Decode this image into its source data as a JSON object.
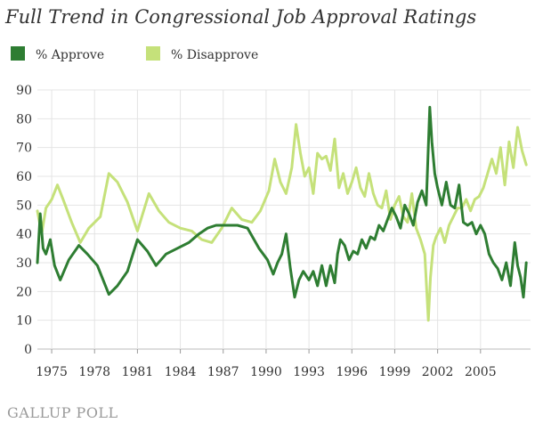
{
  "chart_data": {
    "type": "line",
    "title": "Full Trend in Congressional Job Approval Ratings",
    "xlabel": "",
    "ylabel": "",
    "xlim": [
      1974,
      2008.5
    ],
    "ylim": [
      0,
      90
    ],
    "yticks": [
      0,
      10,
      20,
      30,
      40,
      50,
      60,
      70,
      80,
      90
    ],
    "xticks": [
      "1975",
      "1978",
      "1981",
      "1984",
      "1987",
      "1990",
      "1993",
      "1996",
      "1999",
      "2002",
      "2005"
    ],
    "grid": true,
    "legend_position": "top-left",
    "series": [
      {
        "name": "% Approve",
        "color": "#2e7d32",
        "x": [
          1974.0,
          1974.2,
          1974.4,
          1974.6,
          1974.9,
          1975.2,
          1975.6,
          1976.2,
          1976.9,
          1977.5,
          1978.2,
          1979.0,
          1979.6,
          1980.3,
          1981.0,
          1981.7,
          1982.3,
          1983.0,
          1983.8,
          1984.6,
          1985.3,
          1985.9,
          1986.5,
          1987.2,
          1988.0,
          1988.7,
          1989.5,
          1990.1,
          1990.5,
          1990.8,
          1991.1,
          1991.4,
          1991.7,
          1992.0,
          1992.3,
          1992.6,
          1993.0,
          1993.3,
          1993.6,
          1993.9,
          1994.2,
          1994.5,
          1994.8,
          1995.0,
          1995.2,
          1995.5,
          1995.8,
          1996.1,
          1996.4,
          1996.7,
          1997.0,
          1997.3,
          1997.6,
          1997.9,
          1998.2,
          1998.5,
          1998.8,
          1999.1,
          1999.4,
          1999.7,
          2000.0,
          2000.3,
          2000.6,
          2000.9,
          2001.2,
          2001.45,
          2001.6,
          2001.8,
          2002.0,
          2002.3,
          2002.6,
          2002.9,
          2003.2,
          2003.5,
          2003.8,
          2004.1,
          2004.4,
          2004.7,
          2005.0,
          2005.3,
          2005.6,
          2005.9,
          2006.2,
          2006.5,
          2006.8,
          2007.1,
          2007.4,
          2007.6,
          2007.8,
          2008.0,
          2008.2
        ],
        "values": [
          30,
          47,
          35,
          33,
          38,
          29,
          24,
          31,
          36,
          33,
          29,
          19,
          22,
          27,
          38,
          34,
          29,
          33,
          35,
          37,
          40,
          42,
          43,
          43,
          43,
          42,
          35,
          31,
          26,
          30,
          33,
          40,
          28,
          18,
          24,
          27,
          24,
          27,
          22,
          29,
          22,
          29,
          23,
          33,
          38,
          36,
          31,
          34,
          33,
          38,
          35,
          39,
          38,
          43,
          41,
          45,
          49,
          46,
          42,
          50,
          47,
          43,
          51,
          55,
          50,
          84,
          72,
          61,
          56,
          50,
          58,
          50,
          49,
          57,
          44,
          43,
          44,
          40,
          43,
          40,
          33,
          30,
          28,
          24,
          30,
          22,
          37,
          29,
          25,
          18,
          30
        ]
      },
      {
        "name": "% Disapprove",
        "color": "#c5e17a",
        "x": [
          1974.0,
          1974.3,
          1974.6,
          1975.0,
          1975.4,
          1975.8,
          1976.4,
          1977.0,
          1977.6,
          1978.4,
          1979.0,
          1979.6,
          1980.3,
          1981.0,
          1981.8,
          1982.5,
          1983.2,
          1984.0,
          1984.8,
          1985.5,
          1986.2,
          1986.9,
          1987.6,
          1988.3,
          1989.0,
          1989.6,
          1990.2,
          1990.6,
          1991.0,
          1991.4,
          1991.8,
          1992.1,
          1992.4,
          1992.7,
          1993.0,
          1993.3,
          1993.6,
          1993.9,
          1994.2,
          1994.5,
          1994.8,
          1995.1,
          1995.4,
          1995.7,
          1996.0,
          1996.3,
          1996.6,
          1996.9,
          1997.2,
          1997.5,
          1997.8,
          1998.1,
          1998.4,
          1998.7,
          1999.0,
          1999.3,
          1999.6,
          1999.9,
          2000.2,
          2000.5,
          2000.8,
          2001.1,
          2001.35,
          2001.5,
          2001.7,
          2001.9,
          2002.2,
          2002.5,
          2002.8,
          2003.1,
          2003.4,
          2003.7,
          2004.0,
          2004.3,
          2004.6,
          2004.9,
          2005.2,
          2005.5,
          2005.8,
          2006.1,
          2006.4,
          2006.7,
          2007.0,
          2007.3,
          2007.6,
          2007.9,
          2008.2
        ],
        "values": [
          48,
          40,
          49,
          52,
          57,
          52,
          44,
          37,
          42,
          46,
          61,
          58,
          51,
          41,
          54,
          48,
          44,
          42,
          41,
          38,
          37,
          42,
          49,
          45,
          44,
          48,
          55,
          66,
          58,
          54,
          63,
          78,
          68,
          60,
          63,
          54,
          68,
          66,
          67,
          62,
          73,
          56,
          61,
          54,
          58,
          63,
          56,
          53,
          61,
          54,
          50,
          49,
          55,
          45,
          50,
          53,
          46,
          44,
          54,
          42,
          38,
          33,
          10,
          25,
          36,
          39,
          42,
          37,
          43,
          46,
          49,
          49,
          52,
          48,
          52,
          53,
          56,
          61,
          66,
          61,
          70,
          57,
          72,
          63,
          77,
          69,
          64
        ]
      }
    ]
  },
  "footer": {
    "logo_text": "GALLUP POLL"
  }
}
